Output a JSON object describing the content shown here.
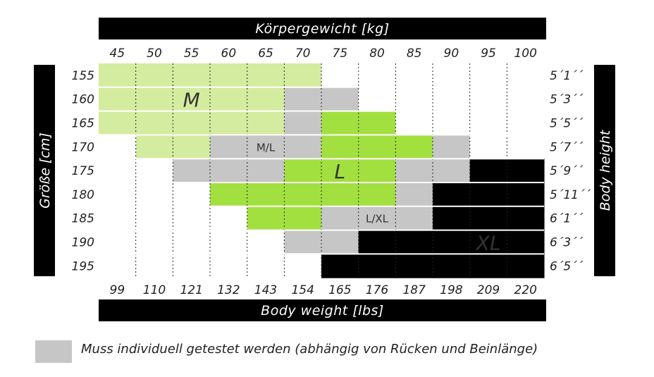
{
  "chart_data": {
    "type": "heatmap",
    "top_axis_title": "Körpergewicht [kg]",
    "bottom_axis_title": "Body weight [lbs]",
    "left_axis_title": "Größe [cm]",
    "right_axis_title": "Body height",
    "weights_kg": [
      "45",
      "50",
      "55",
      "60",
      "65",
      "70",
      "75",
      "80",
      "85",
      "90",
      "95",
      "100"
    ],
    "weights_lbs": [
      "99",
      "110",
      "121",
      "132",
      "143",
      "154",
      "165",
      "176",
      "187",
      "198",
      "209",
      "220"
    ],
    "heights_cm": [
      "155",
      "160",
      "165",
      "170",
      "175",
      "180",
      "185",
      "190",
      "195"
    ],
    "heights_ft": [
      "5´1´´",
      "5´3´´",
      "5´5´´",
      "5´7´´",
      "5´9´´",
      "5´11´´",
      "6´1´´",
      "6´3´´",
      "6´5´´"
    ],
    "cell_codes": [
      "MMMMMM......",
      "MMMMMGG.....",
      "MMMMMGLL....",
      ".MMGGGLLLG..",
      "..GGGLLLGGXX",
      "...LLLLLGXXX",
      "....LLGGGXXX",
      ".....GGXXXXX",
      "......XXXXXX"
    ],
    "size_labels": [
      {
        "text": "M",
        "row": 1,
        "col": 2
      },
      {
        "text": "M/L",
        "row": 3,
        "col": 4
      },
      {
        "text": "L",
        "row": 4,
        "col": 6
      },
      {
        "text": "L/XL",
        "row": 6,
        "col": 7
      },
      {
        "text": "XL",
        "row": 7,
        "col": 10
      }
    ],
    "colors": {
      "M": "#d4ec9f",
      "L": "#a2e040",
      "XL": "#77bd0b",
      "G": "#c6c6c6",
      "empty": "#ffffff",
      "bar": "#000000",
      "legend_gray": "#c6c6c6"
    },
    "legend": "Muss individuell getestet werden (abhängig von Rücken und Beinlänge)"
  }
}
